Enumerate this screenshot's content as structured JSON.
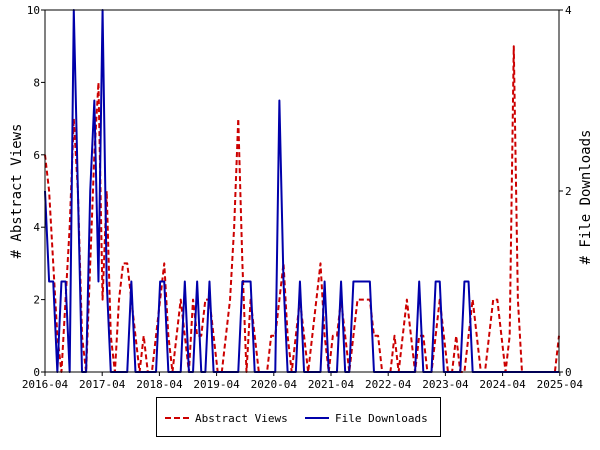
{
  "chart_data": {
    "type": "line",
    "title": "",
    "xlabel": "",
    "ylabel": "# Abstract Views",
    "y2label": "# File Downloads",
    "ylim": [
      0,
      10
    ],
    "y2lim": [
      0,
      4
    ],
    "y_ticks": [
      "0",
      "2",
      "4",
      "6",
      "8",
      "10"
    ],
    "y2_ticks": [
      "0",
      "2",
      "4"
    ],
    "x_ticks": [
      "2016-04",
      "2017-04",
      "2018-04",
      "2019-04",
      "2020-04",
      "2021-04",
      "2022-04",
      "2023-04",
      "2024-04",
      "2025-04"
    ],
    "grid": false,
    "legend_position": "bottom",
    "series": [
      {
        "name": "Abstract Views",
        "axis": "left",
        "color": "#cc0000",
        "style": "dashed",
        "values": [
          6,
          5,
          3,
          1,
          0,
          2,
          4,
          7,
          5,
          1,
          0,
          3,
          6,
          8,
          2,
          5,
          1,
          0,
          2,
          3,
          3,
          2,
          1,
          0,
          1,
          0,
          0,
          1,
          2,
          3,
          1,
          0,
          1,
          2,
          1,
          0,
          2,
          1,
          1,
          2,
          2,
          1,
          0,
          0,
          1,
          2,
          4,
          7,
          3,
          0,
          2,
          1,
          0,
          0,
          0,
          1,
          1,
          2,
          3,
          1,
          0,
          1,
          2,
          1,
          0,
          1,
          2,
          3,
          1,
          0,
          1,
          1,
          2,
          1,
          0,
          1,
          2,
          2,
          2,
          2,
          1,
          1,
          0,
          0,
          0,
          1,
          0,
          1,
          2,
          1,
          0,
          1,
          1,
          0,
          0,
          1,
          2,
          1,
          0,
          0,
          1,
          0,
          0,
          1,
          2,
          1,
          0,
          0,
          1,
          2,
          2,
          1,
          0,
          1,
          9,
          2,
          0,
          0,
          0,
          0,
          0,
          0,
          0,
          0,
          0,
          1
        ]
      },
      {
        "name": "File Downloads",
        "axis": "right",
        "color": "#0000aa",
        "style": "solid",
        "values": [
          2,
          1,
          1,
          0,
          1,
          1,
          0,
          4,
          2,
          0,
          0,
          2,
          3,
          1,
          4,
          1,
          0,
          0,
          0,
          0,
          0,
          1,
          0,
          0,
          0,
          0,
          0,
          0,
          1,
          1,
          0,
          0,
          0,
          0,
          1,
          0,
          0,
          1,
          0,
          0,
          1,
          0,
          0,
          0,
          0,
          0,
          0,
          0,
          1,
          1,
          1,
          0,
          0,
          0,
          0,
          0,
          0,
          3,
          1,
          0,
          0,
          0,
          1,
          0,
          0,
          0,
          0,
          0,
          1,
          0,
          0,
          0,
          1,
          0,
          0,
          1,
          1,
          1,
          1,
          1,
          0,
          0,
          0,
          0,
          0,
          0,
          0,
          0,
          0,
          0,
          0,
          1,
          0,
          0,
          0,
          1,
          1,
          0,
          0,
          0,
          0,
          0,
          1,
          1,
          0,
          0,
          0,
          0,
          0,
          0,
          0,
          0,
          0,
          0,
          0,
          0,
          0,
          0,
          0,
          0,
          0,
          0,
          0,
          0,
          0,
          0
        ]
      }
    ]
  }
}
